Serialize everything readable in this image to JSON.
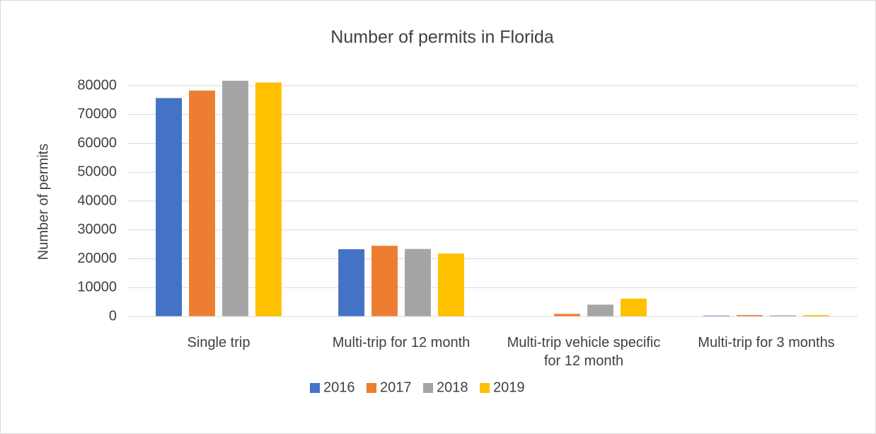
{
  "chart_data": {
    "type": "bar",
    "title": "Number of permits in Florida",
    "y_label": "Number of permits",
    "categories": [
      "Single trip",
      "Multi-trip for 12 month",
      "Multi-trip vehicle specific for 12 month",
      "Multi-trip for 3 months"
    ],
    "series": [
      {
        "name": "2016",
        "color": "#4472c4",
        "values": [
          75700,
          23300,
          0,
          300
        ]
      },
      {
        "name": "2017",
        "color": "#ed7d31",
        "values": [
          78300,
          24500,
          900,
          500
        ]
      },
      {
        "name": "2018",
        "color": "#a5a5a5",
        "values": [
          81700,
          23400,
          4100,
          400
        ]
      },
      {
        "name": "2019",
        "color": "#ffc000",
        "values": [
          81100,
          21800,
          6200,
          500
        ]
      }
    ],
    "ylim": [
      0,
      80000
    ],
    "yticks": [
      0,
      10000,
      20000,
      30000,
      40000,
      50000,
      60000,
      70000,
      80000
    ],
    "grid": true,
    "legend": "bottom"
  }
}
